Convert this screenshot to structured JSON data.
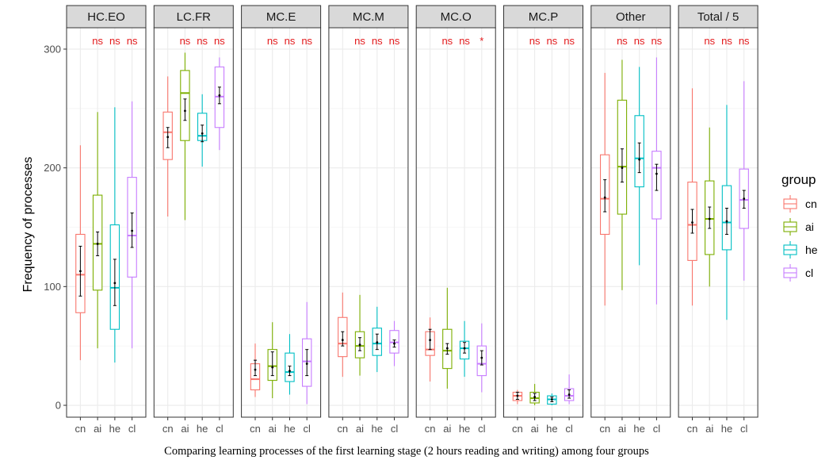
{
  "chart_data": {
    "type": "boxplot",
    "xlabel": "Comparing learning processes of the first learning stage (2 hours reading and writing) among four groups",
    "ylabel": "Frequency of processes",
    "ylim": [
      -10,
      318
    ],
    "yticks": [
      0,
      100,
      200,
      300
    ],
    "y_minor_ticks": [
      50,
      150,
      250
    ],
    "grid": true,
    "legend": {
      "title": "group",
      "position": "right",
      "entries": [
        {
          "name": "cn",
          "color": "#F8766D"
        },
        {
          "name": "ai",
          "color": "#7CAE00"
        },
        {
          "name": "he",
          "color": "#00BFC4"
        },
        {
          "name": "cl",
          "color": "#C77CFF"
        }
      ]
    },
    "groups": [
      "cn",
      "ai",
      "he",
      "cl"
    ],
    "significance_color": "#E41A1C",
    "panels": [
      {
        "name": "HC.EO",
        "significance": [
          "ns",
          "ns",
          "ns"
        ],
        "boxes": [
          {
            "group": "cn",
            "min": 38,
            "q1": 78,
            "median": 110,
            "q3": 144,
            "max": 219,
            "mean": 113,
            "err_low": 92,
            "err_high": 134
          },
          {
            "group": "ai",
            "min": 48,
            "q1": 97,
            "median": 136,
            "q3": 177,
            "max": 247,
            "mean": 136,
            "err_low": 126,
            "err_high": 146
          },
          {
            "group": "he",
            "min": 36,
            "q1": 64,
            "median": 99,
            "q3": 152,
            "max": 251,
            "mean": 103,
            "err_low": 84,
            "err_high": 123
          },
          {
            "group": "cl",
            "min": 48,
            "q1": 108,
            "median": 143,
            "q3": 192,
            "max": 256,
            "mean": 147,
            "err_low": 133,
            "err_high": 162
          }
        ]
      },
      {
        "name": "LC.FR",
        "significance": [
          "ns",
          "ns",
          "ns"
        ],
        "boxes": [
          {
            "group": "cn",
            "min": 159,
            "q1": 207,
            "median": 230,
            "q3": 247,
            "max": 277,
            "mean": 226,
            "err_low": 217,
            "err_high": 234
          },
          {
            "group": "ai",
            "min": 156,
            "q1": 223,
            "median": 263,
            "q3": 282,
            "max": 297,
            "mean": 248,
            "err_low": 240,
            "err_high": 258
          },
          {
            "group": "he",
            "min": 201,
            "q1": 223,
            "median": 227,
            "q3": 246,
            "max": 262,
            "mean": 229,
            "err_low": 222,
            "err_high": 236
          },
          {
            "group": "cl",
            "min": 215,
            "q1": 234,
            "median": 260,
            "q3": 285,
            "max": 293,
            "mean": 261,
            "err_low": 254,
            "err_high": 268
          }
        ]
      },
      {
        "name": "MC.E",
        "significance": [
          "ns",
          "ns",
          "ns"
        ],
        "boxes": [
          {
            "group": "cn",
            "min": 7,
            "q1": 13,
            "median": 22,
            "q3": 35,
            "max": 52,
            "mean": 30,
            "err_low": 25,
            "err_high": 38
          },
          {
            "group": "ai",
            "min": 6,
            "q1": 21,
            "median": 33,
            "q3": 47,
            "max": 70,
            "mean": 32,
            "err_low": 25,
            "err_high": 45
          },
          {
            "group": "he",
            "min": 9,
            "q1": 20,
            "median": 28,
            "q3": 44,
            "max": 60,
            "mean": 29,
            "err_low": 25,
            "err_high": 33
          },
          {
            "group": "cl",
            "min": 1,
            "q1": 16,
            "median": 37,
            "q3": 56,
            "max": 87,
            "mean": 35,
            "err_low": 25,
            "err_high": 47
          }
        ]
      },
      {
        "name": "MC.M",
        "significance": [
          "ns",
          "ns",
          "ns"
        ],
        "boxes": [
          {
            "group": "cn",
            "min": 24,
            "q1": 41,
            "median": 52,
            "q3": 74,
            "max": 95,
            "mean": 55,
            "err_low": 50,
            "err_high": 62
          },
          {
            "group": "ai",
            "min": 25,
            "q1": 40,
            "median": 50,
            "q3": 62,
            "max": 93,
            "mean": 51,
            "err_low": 46,
            "err_high": 57
          },
          {
            "group": "he",
            "min": 28,
            "q1": 42,
            "median": 52,
            "q3": 65,
            "max": 83,
            "mean": 53,
            "err_low": 47,
            "err_high": 60
          },
          {
            "group": "cl",
            "min": 33,
            "q1": 44,
            "median": 53,
            "q3": 63,
            "max": 71,
            "mean": 52,
            "err_low": 49,
            "err_high": 55
          }
        ]
      },
      {
        "name": "MC.O",
        "significance": [
          "ns",
          "ns",
          "*"
        ],
        "boxes": [
          {
            "group": "cn",
            "min": 20,
            "q1": 42,
            "median": 47,
            "q3": 62,
            "max": 74,
            "mean": 55,
            "err_low": 47,
            "err_high": 64
          },
          {
            "group": "ai",
            "min": 14,
            "q1": 31,
            "median": 46,
            "q3": 64,
            "max": 99,
            "mean": 48,
            "err_low": 43,
            "err_high": 52
          },
          {
            "group": "he",
            "min": 24,
            "q1": 39,
            "median": 48,
            "q3": 54,
            "max": 71,
            "mean": 48,
            "err_low": 44,
            "err_high": 53
          },
          {
            "group": "cl",
            "min": 11,
            "q1": 25,
            "median": 35,
            "q3": 50,
            "max": 69,
            "mean": 40,
            "err_low": 34,
            "err_high": 46
          }
        ]
      },
      {
        "name": "MC.P",
        "significance": [
          "ns",
          "ns",
          "ns"
        ],
        "boxes": [
          {
            "group": "cn",
            "min": 1,
            "q1": 4,
            "median": 8,
            "q3": 11,
            "max": 13,
            "mean": 8,
            "err_low": 5,
            "err_high": 11
          },
          {
            "group": "ai",
            "min": 0,
            "q1": 2,
            "median": 6,
            "q3": 11,
            "max": 18,
            "mean": 7,
            "err_low": 4,
            "err_high": 10
          },
          {
            "group": "he",
            "min": 0,
            "q1": 1,
            "median": 5,
            "q3": 8,
            "max": 10,
            "mean": 5,
            "err_low": 3,
            "err_high": 7
          },
          {
            "group": "cl",
            "min": 1,
            "q1": 4,
            "median": 8,
            "q3": 14,
            "max": 26,
            "mean": 9,
            "err_low": 6,
            "err_high": 13
          }
        ]
      },
      {
        "name": "Other",
        "significance": [
          "ns",
          "ns",
          "ns"
        ],
        "boxes": [
          {
            "group": "cn",
            "min": 84,
            "q1": 144,
            "median": 174,
            "q3": 211,
            "max": 280,
            "mean": 175,
            "err_low": 163,
            "err_high": 190
          },
          {
            "group": "ai",
            "min": 97,
            "q1": 161,
            "median": 201,
            "q3": 257,
            "max": 291,
            "mean": 200,
            "err_low": 188,
            "err_high": 216
          },
          {
            "group": "he",
            "min": 118,
            "q1": 184,
            "median": 208,
            "q3": 244,
            "max": 285,
            "mean": 207,
            "err_low": 196,
            "err_high": 221
          },
          {
            "group": "cl",
            "min": 85,
            "q1": 157,
            "median": 200,
            "q3": 214,
            "max": 293,
            "mean": 195,
            "err_low": 181,
            "err_high": 203
          }
        ]
      },
      {
        "name": "Total / 5",
        "significance": [
          "ns",
          "ns",
          "ns"
        ],
        "boxes": [
          {
            "group": "cn",
            "min": 84,
            "q1": 122,
            "median": 152,
            "q3": 188,
            "max": 267,
            "mean": 154,
            "err_low": 145,
            "err_high": 165
          },
          {
            "group": "ai",
            "min": 100,
            "q1": 127,
            "median": 157,
            "q3": 189,
            "max": 234,
            "mean": 157,
            "err_low": 149,
            "err_high": 167
          },
          {
            "group": "he",
            "min": 72,
            "q1": 131,
            "median": 154,
            "q3": 185,
            "max": 253,
            "mean": 155,
            "err_low": 144,
            "err_high": 166
          },
          {
            "group": "cl",
            "min": 105,
            "q1": 149,
            "median": 173,
            "q3": 199,
            "max": 273,
            "mean": 174,
            "err_low": 166,
            "err_high": 181
          }
        ]
      }
    ]
  }
}
